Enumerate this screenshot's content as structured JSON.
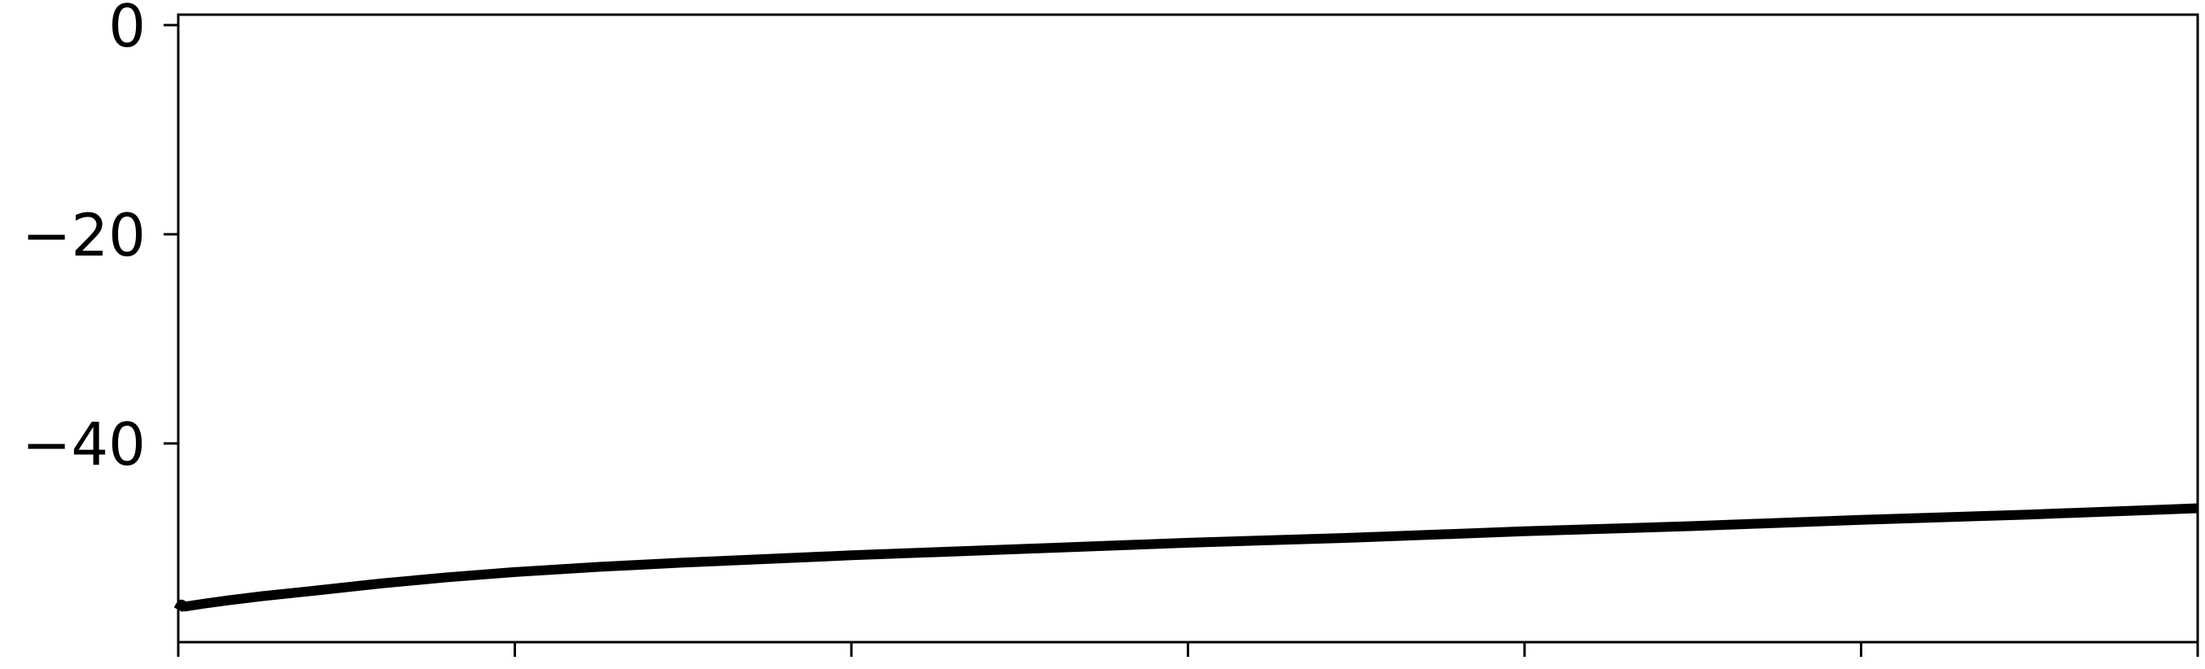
{
  "chart_data": {
    "type": "line",
    "title": "",
    "xlabel": "",
    "ylabel": "",
    "xlim": [
      0,
      6
    ],
    "ylim": [
      -59,
      1
    ],
    "yticks": [
      {
        "value": 0,
        "label": "0"
      },
      {
        "value": -20,
        "label": "−20"
      },
      {
        "value": -40,
        "label": "−40"
      }
    ],
    "xticks": [
      0,
      1,
      2,
      3,
      4,
      5,
      6
    ],
    "grid": false,
    "series": [
      {
        "color": "#000000",
        "x": [
          0,
          0.005,
          0.01,
          0.02,
          0.04,
          0.08,
          0.15,
          0.25,
          0.4,
          0.6,
          0.8,
          1.0,
          1.25,
          1.5,
          2.0,
          2.5,
          3.0,
          3.5,
          4.0,
          4.5,
          5.0,
          5.5,
          6.0
        ],
        "y": [
          -55.9,
          -55.6,
          -55.4,
          -55.6,
          -55.5,
          -55.3,
          -55.0,
          -54.6,
          -54.1,
          -53.4,
          -52.8,
          -52.3,
          -51.8,
          -51.4,
          -50.7,
          -50.1,
          -49.5,
          -49.0,
          -48.4,
          -47.9,
          -47.3,
          -46.8,
          -46.2
        ]
      }
    ]
  }
}
